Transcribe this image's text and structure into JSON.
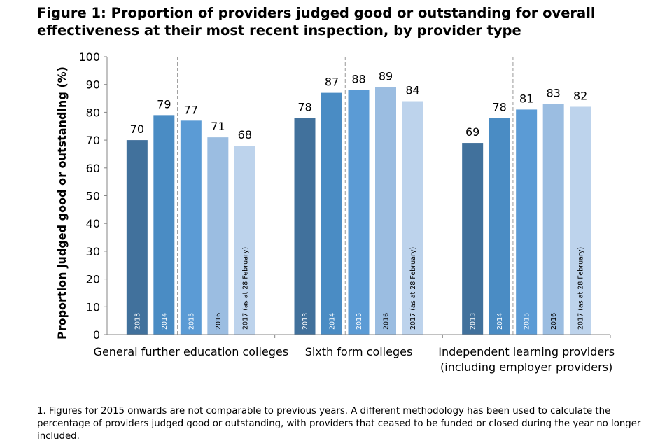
{
  "chart_data": {
    "type": "bar",
    "title": "Figure 1: Proportion of providers judged good or outstanding for overall effectiveness at their most recent inspection, by provider type",
    "ylabel": "Proportion judged good or outstanding (%)",
    "xlabel": "",
    "ylim": [
      0,
      100
    ],
    "yticks": [
      0,
      10,
      20,
      30,
      40,
      50,
      60,
      70,
      80,
      90,
      100
    ],
    "grid": false,
    "series_names": [
      "2013",
      "2014",
      "2015",
      "2016",
      "2017 (as at 28 February)"
    ],
    "series_colors": [
      "#41719c",
      "#4a8cc4",
      "#5b9bd5",
      "#9bbde1",
      "#bdd3ec"
    ],
    "divider_after_index": 1,
    "groups": [
      {
        "category": "General further education colleges",
        "category_lines": [
          "General further education colleges"
        ],
        "values": [
          70,
          79,
          77,
          71,
          68
        ]
      },
      {
        "category": "Sixth form colleges",
        "category_lines": [
          "Sixth form colleges"
        ],
        "values": [
          78,
          87,
          88,
          89,
          84
        ]
      },
      {
        "category": "Independent learning providers (including employer providers)",
        "category_lines": [
          "Independent learning providers",
          "(including employer providers)"
        ],
        "values": [
          69,
          78,
          81,
          83,
          82
        ]
      }
    ]
  },
  "footnote": "1. Figures for 2015 onwards are not comparable to previous years. A different methodology has been used to calculate the percentage of providers judged good or outstanding, with providers that ceased to be funded or closed during the year no longer included."
}
